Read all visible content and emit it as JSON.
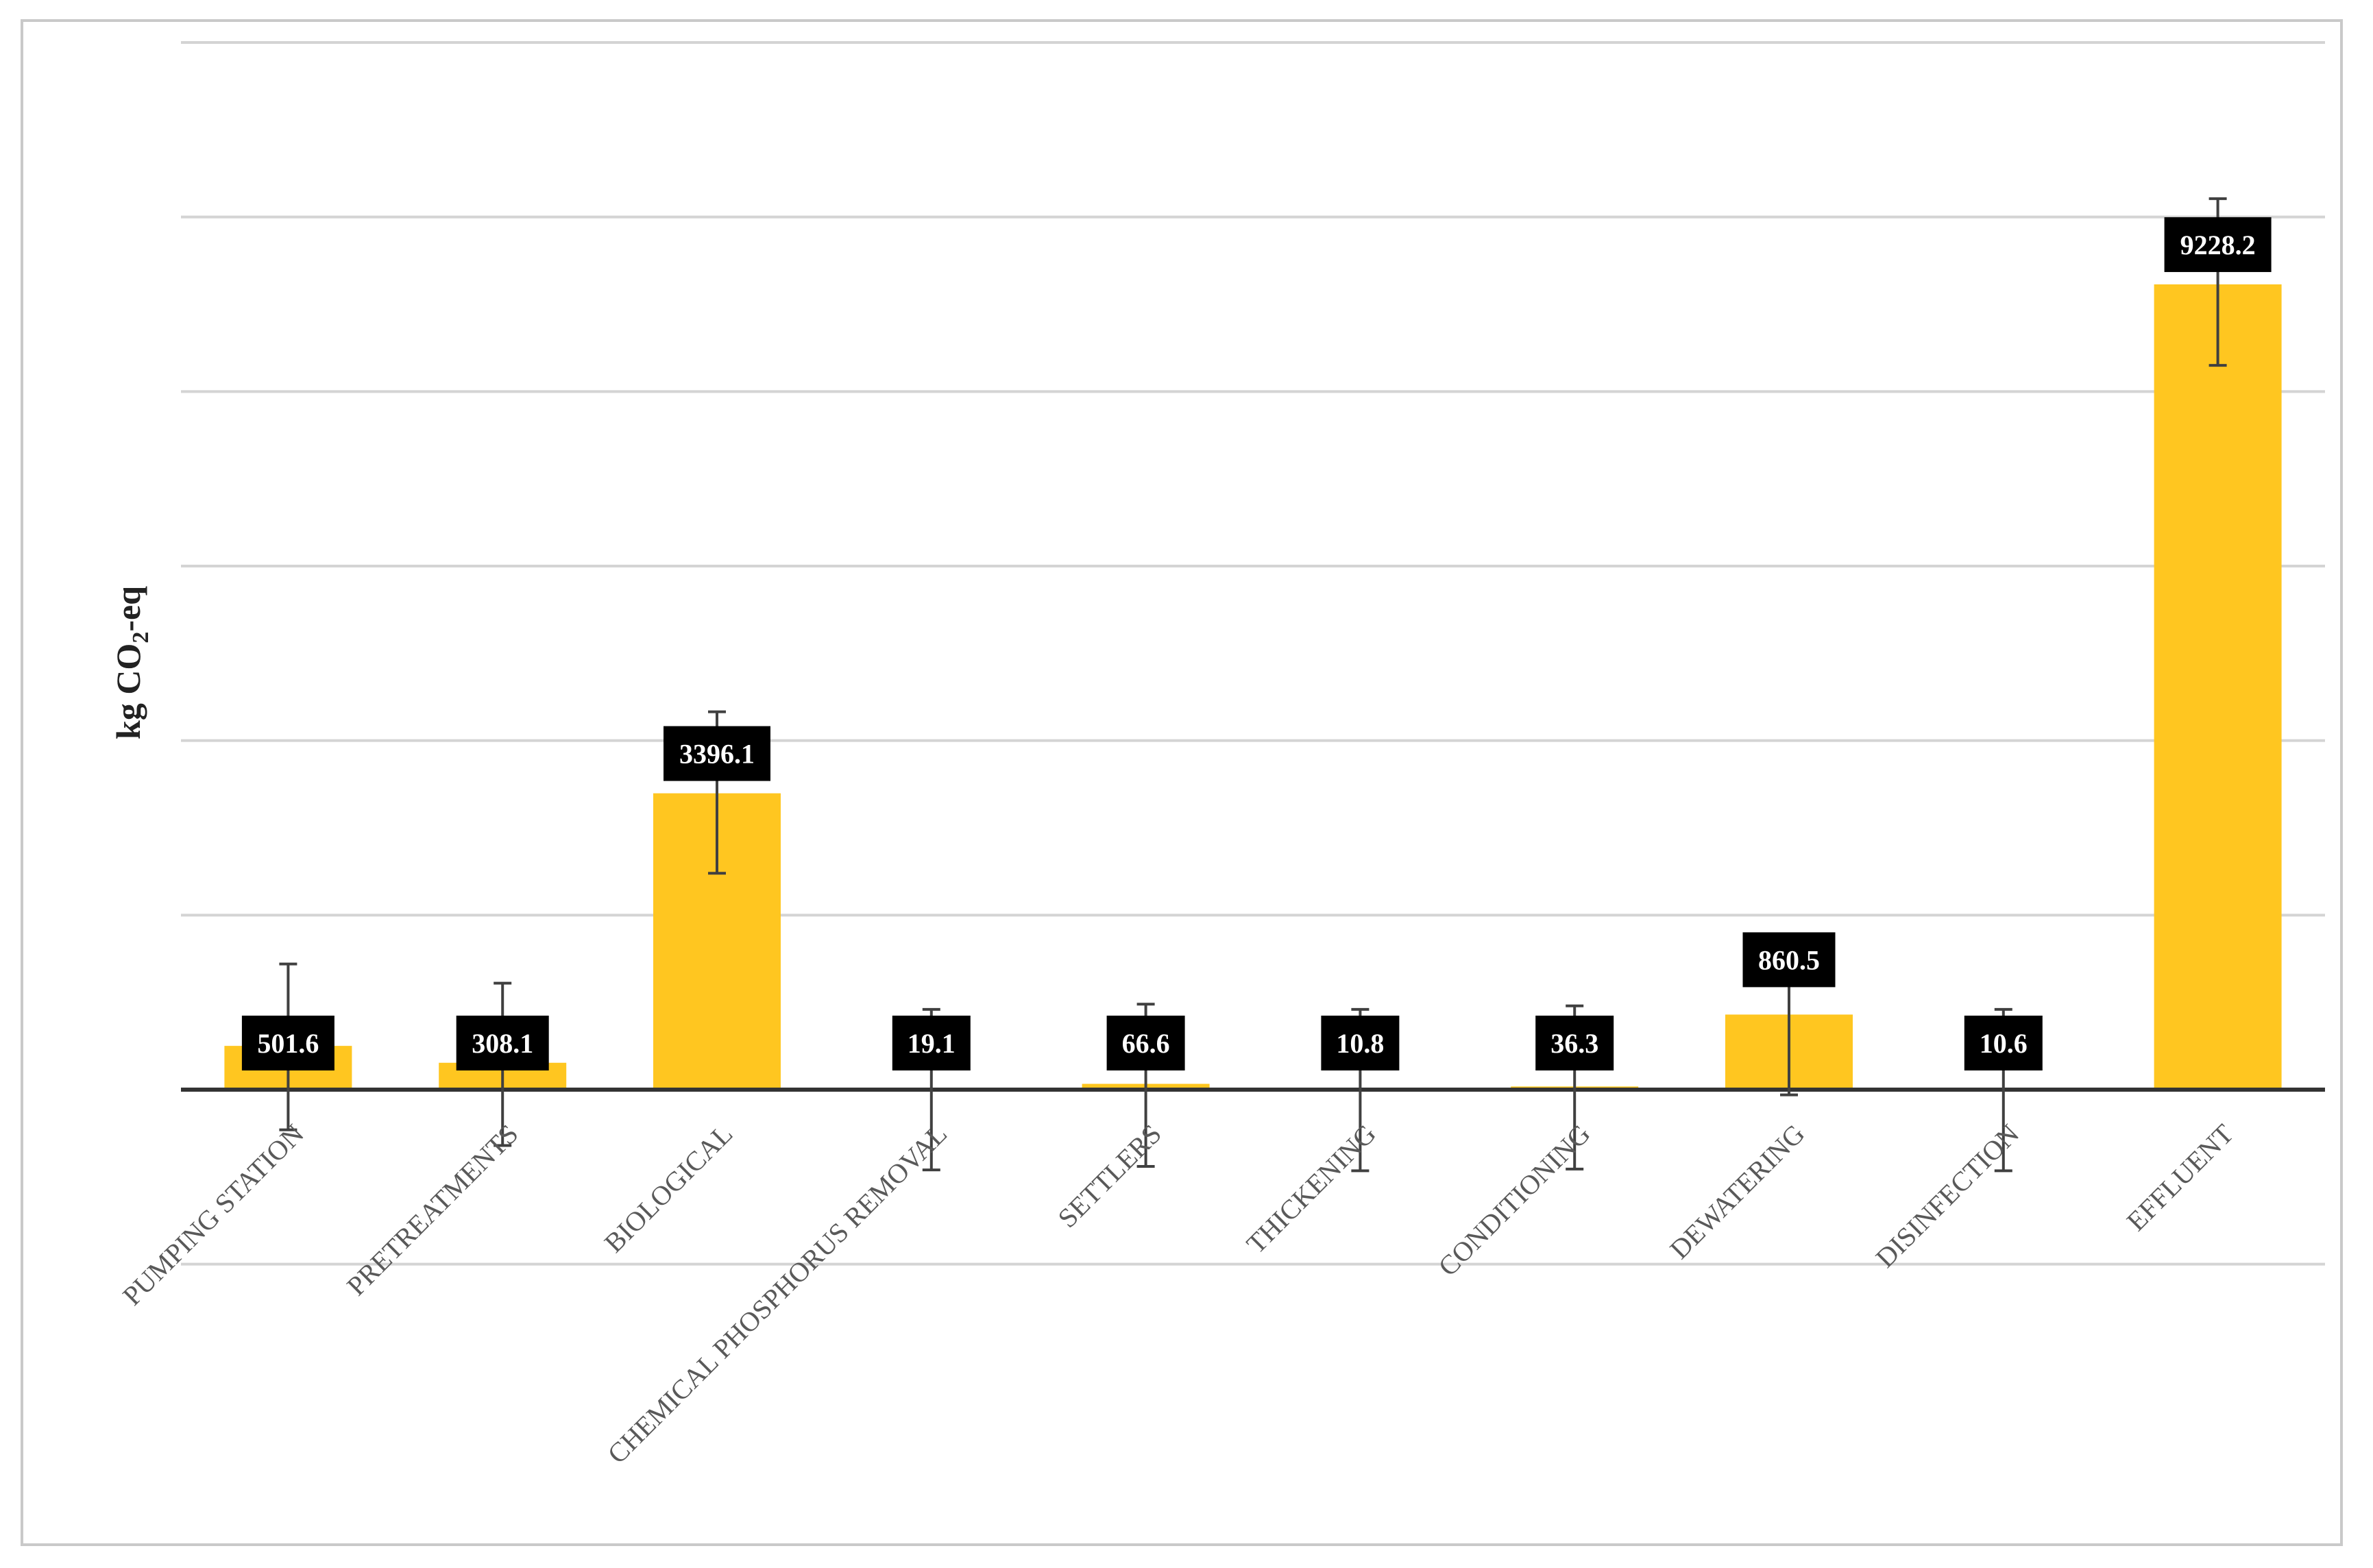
{
  "chart_data": {
    "type": "bar",
    "title": "",
    "ylabel_parts": [
      "kg  CO",
      "2",
      "-eq"
    ],
    "xlabel": "",
    "categories": [
      "PUMPING STATION",
      "PRETREATMENTS",
      "BIOLOGICAL",
      "CHEMICAL PHOSPHORUS REMOVAL",
      "SETTLERS",
      "THICKENING",
      "CONDITIONING",
      "DEWATERING",
      "DISINFECTION",
      "EFFLUENT"
    ],
    "values": [
      501.6,
      308.1,
      3396.1,
      19.1,
      66.6,
      10.8,
      36.3,
      860.5,
      10.6,
      9228.2
    ],
    "value_labels": [
      "501.6",
      "308.1",
      "3396.1",
      "19.1",
      "66.6",
      "10.8",
      "36.3",
      "860.5",
      "10.6",
      "9228.2"
    ],
    "error_upper": [
      1440,
      1220,
      4330,
      920,
      980,
      920,
      960,
      1780,
      920,
      10210
    ],
    "error_lower": [
      -460,
      -640,
      2480,
      -920,
      -880,
      -930,
      -910,
      -60,
      -930,
      8300
    ],
    "ylim": [
      -2000,
      12000
    ],
    "gridlines": [
      -2000,
      0,
      2000,
      4000,
      6000,
      8000,
      10000,
      12000
    ],
    "tick_labels_shown": false,
    "colors": {
      "bar": "#ffc620",
      "label_bg": "#000000",
      "label_text": "#ffffff",
      "grid": "#d4d4d4",
      "axis": "#333333",
      "error": "#404040"
    }
  }
}
